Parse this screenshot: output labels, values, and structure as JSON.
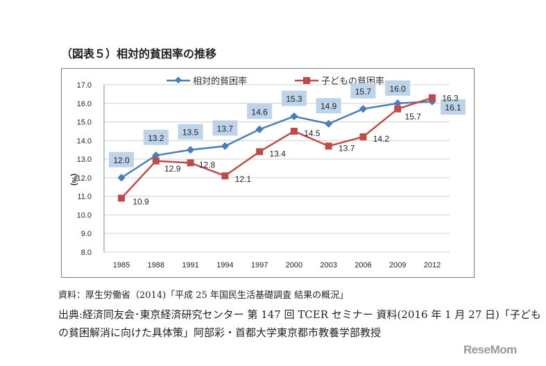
{
  "title": "（図表５）相対的貧困率の推移",
  "chart_data": {
    "type": "line",
    "categories": [
      "1985",
      "1988",
      "1991",
      "1994",
      "1997",
      "2000",
      "2003",
      "2006",
      "2009",
      "2012"
    ],
    "series": [
      {
        "name": "相対的貧困率",
        "color": "#4a7ebb",
        "values": [
          12.0,
          13.2,
          13.5,
          13.7,
          14.6,
          15.3,
          14.9,
          15.7,
          16.0,
          16.1
        ]
      },
      {
        "name": "子どもの貧困率",
        "color": "#be4b48",
        "values": [
          10.9,
          12.9,
          12.8,
          12.1,
          13.4,
          14.5,
          13.7,
          14.2,
          15.7,
          16.3
        ]
      }
    ],
    "ylabel": "(%)",
    "ylim": [
      8.0,
      17.0
    ],
    "yticks": [
      "8.0",
      "9.0",
      "10.0",
      "11.0",
      "12.0",
      "13.0",
      "14.0",
      "15.0",
      "16.0",
      "17.0"
    ],
    "grid": true,
    "legend": "top"
  },
  "notes": {
    "source": "資料：厚生労働省（2014)「平成 25 年国民生活基礎調査 結果の概況」",
    "citation": "出典:経済同友会･東京経済研究センター 第 147 回 TCER セミナー 資料(2016 年 1 月 27 日)「子どもの貧困解消に向けた具体策」阿部彩・首都大学東京都市教養学部教授"
  },
  "logo": "ReseMom"
}
